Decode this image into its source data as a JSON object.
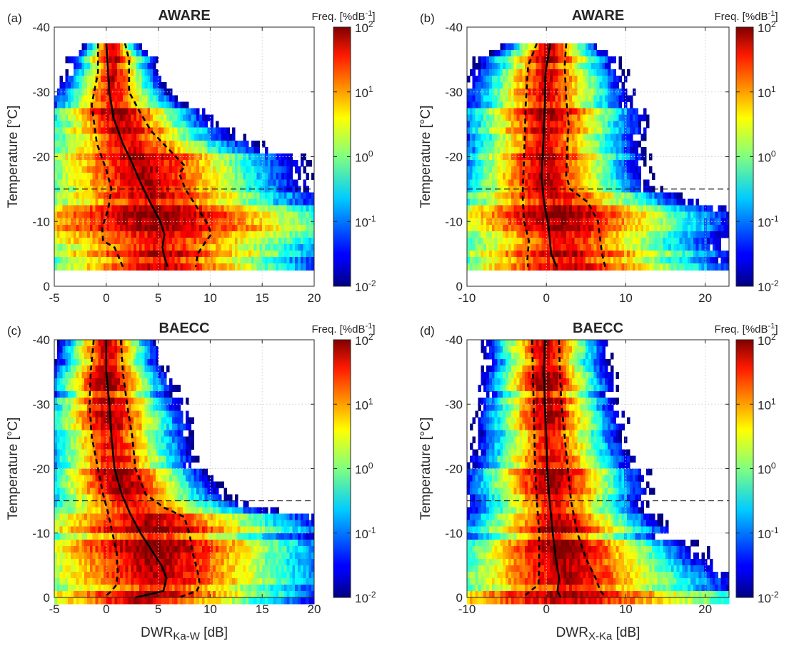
{
  "colorbar": {
    "title": "Freq. [%dB",
    "title_sup": "-1",
    "title_end": "]",
    "tick_base": "10",
    "ticks": [
      "2",
      "1",
      "0",
      "-1",
      "-2"
    ]
  },
  "y_axis_label": "Temperature  [°C]",
  "x_axis_labels": {
    "ka_w": {
      "main": "DWR",
      "sub": "Ka-W",
      "unit": " [dB]"
    },
    "x_ka": {
      "main": "DWR",
      "sub": "X-Ka",
      "unit": " [dB]"
    }
  },
  "chart_data": [
    {
      "type": "heatmap",
      "panel": "(a)",
      "title": "AWARE",
      "xlabel": "",
      "ylabel": "Temperature  [°C]",
      "xlim": [
        -5,
        20
      ],
      "ylim": [
        0,
        -40
      ],
      "xticks": [
        "-5",
        "0",
        "5",
        "10",
        "15",
        "20"
      ],
      "yticks": [
        "0",
        "-10",
        "-20",
        "-30",
        "-40"
      ],
      "color_scale": "log10, 0.01 to 100 %dB^-1",
      "reference_line_temperature": -15,
      "spread": [
        {
          "t": -37.5,
          "w": 1.0
        },
        {
          "t": -35,
          "w": 1.6
        },
        {
          "t": -30,
          "w": 2.0
        },
        {
          "t": -25,
          "w": 2.3
        },
        {
          "t": -20,
          "w": 2.5
        },
        {
          "t": -15,
          "w": 2.9
        },
        {
          "t": -10,
          "w": 3.2
        },
        {
          "t": -5,
          "w": 3.3
        },
        {
          "t": -3,
          "w": 3.4
        }
      ],
      "median": [
        {
          "t": -37.5,
          "v": 0.0
        },
        {
          "t": -35,
          "v": 0.1
        },
        {
          "t": -30,
          "v": 0.3
        },
        {
          "t": -26,
          "v": 0.7
        },
        {
          "t": -22,
          "v": 1.6
        },
        {
          "t": -19,
          "v": 2.5
        },
        {
          "t": -16,
          "v": 3.3
        },
        {
          "t": -13,
          "v": 4.2
        },
        {
          "t": -10,
          "v": 5.2
        },
        {
          "t": -8,
          "v": 5.6
        },
        {
          "t": -6,
          "v": 5.4
        },
        {
          "t": -4.5,
          "v": 5.6
        },
        {
          "t": -3,
          "v": 5.9
        }
      ],
      "lower_quartile": [
        {
          "t": -37.5,
          "v": -0.8
        },
        {
          "t": -33,
          "v": -0.8
        },
        {
          "t": -28,
          "v": -1.4
        },
        {
          "t": -22,
          "v": -0.9
        },
        {
          "t": -18,
          "v": 0.0
        },
        {
          "t": -15,
          "v": 0.5
        },
        {
          "t": -12,
          "v": 0.2
        },
        {
          "t": -9,
          "v": -0.4
        },
        {
          "t": -7,
          "v": -0.3
        },
        {
          "t": -6,
          "v": 0.8
        },
        {
          "t": -4.5,
          "v": 1.2
        },
        {
          "t": -3,
          "v": 1.6
        }
      ],
      "upper_quartile": [
        {
          "t": -37.5,
          "v": 1.8
        },
        {
          "t": -35,
          "v": 2.2
        },
        {
          "t": -30,
          "v": 2.2
        },
        {
          "t": -27,
          "v": 3.2
        },
        {
          "t": -24,
          "v": 4.3
        },
        {
          "t": -21.5,
          "v": 5.8
        },
        {
          "t": -19.5,
          "v": 7.0
        },
        {
          "t": -18.5,
          "v": 7.6
        },
        {
          "t": -17.5,
          "v": 7.0
        },
        {
          "t": -15,
          "v": 7.6
        },
        {
          "t": -12,
          "v": 8.8
        },
        {
          "t": -9.5,
          "v": 9.8
        },
        {
          "t": -8,
          "v": 10.1
        },
        {
          "t": -7,
          "v": 9.6
        },
        {
          "t": -5,
          "v": 8.8
        },
        {
          "t": -3,
          "v": 8.6
        }
      ]
    },
    {
      "type": "heatmap",
      "panel": "(b)",
      "title": "AWARE",
      "xlabel": "",
      "ylabel": "Temperature  [°C]",
      "xlim": [
        -10,
        23
      ],
      "ylim": [
        0,
        -40
      ],
      "xticks": [
        "-10",
        "0",
        "10",
        "20"
      ],
      "yticks": [
        "0",
        "-10",
        "-20",
        "-30",
        "-40"
      ],
      "color_scale": "log10, 0.01 to 100 %dB^-1",
      "reference_line_temperature": -15,
      "spread": [
        {
          "t": -37.5,
          "w": 1.8
        },
        {
          "t": -35,
          "w": 2.5
        },
        {
          "t": -30,
          "w": 2.8
        },
        {
          "t": -25,
          "w": 3.0
        },
        {
          "t": -20,
          "w": 3.0
        },
        {
          "t": -15,
          "w": 3.0
        },
        {
          "t": -10,
          "w": 3.2
        },
        {
          "t": -5,
          "w": 3.2
        },
        {
          "t": -3,
          "w": 3.2
        }
      ],
      "median": [
        {
          "t": -37.5,
          "v": 0.5
        },
        {
          "t": -33,
          "v": -0.1
        },
        {
          "t": -28,
          "v": -0.2
        },
        {
          "t": -22,
          "v": -0.4
        },
        {
          "t": -17,
          "v": -0.6
        },
        {
          "t": -13,
          "v": -0.3
        },
        {
          "t": -9,
          "v": 0.3
        },
        {
          "t": -5,
          "v": 0.6
        },
        {
          "t": -3,
          "v": 1.3
        }
      ],
      "lower_quartile": [
        {
          "t": -37.5,
          "v": -1.2
        },
        {
          "t": -34,
          "v": -2.3
        },
        {
          "t": -28,
          "v": -2.6
        },
        {
          "t": -20,
          "v": -2.8
        },
        {
          "t": -14,
          "v": -3.0
        },
        {
          "t": -10,
          "v": -2.8
        },
        {
          "t": -7,
          "v": -2.2
        },
        {
          "t": -4,
          "v": -2.4
        },
        {
          "t": -3,
          "v": -2.3
        }
      ],
      "upper_quartile": [
        {
          "t": -37.5,
          "v": 2.5
        },
        {
          "t": -34,
          "v": 2.3
        },
        {
          "t": -29,
          "v": 2.5
        },
        {
          "t": -25,
          "v": 2.8
        },
        {
          "t": -21,
          "v": 2.6
        },
        {
          "t": -17,
          "v": 2.5
        },
        {
          "t": -15,
          "v": 3.0
        },
        {
          "t": -13,
          "v": 5.2
        },
        {
          "t": -10,
          "v": 6.5
        },
        {
          "t": -7,
          "v": 6.8
        },
        {
          "t": -5,
          "v": 7.0
        },
        {
          "t": -3,
          "v": 7.4
        }
      ]
    },
    {
      "type": "heatmap",
      "panel": "(c)",
      "title": "BAECC",
      "xlabel": "DWR Ka-W [dB]",
      "ylabel": "Temperature  [°C]",
      "xlim": [
        -5,
        20
      ],
      "ylim": [
        0,
        -40
      ],
      "xticks": [
        "-5",
        "0",
        "5",
        "10",
        "15",
        "20"
      ],
      "yticks": [
        "0",
        "-10",
        "-20",
        "-30",
        "-40"
      ],
      "color_scale": "log10, 0.01 to 100 %dB^-1",
      "reference_line_temperature": -15,
      "spread": [
        {
          "t": -40,
          "w": 2.2
        },
        {
          "t": -35,
          "w": 2.2
        },
        {
          "t": -30,
          "w": 2.4
        },
        {
          "t": -25,
          "w": 2.6
        },
        {
          "t": -20,
          "w": 2.8
        },
        {
          "t": -15,
          "w": 3.0
        },
        {
          "t": -10,
          "w": 3.2
        },
        {
          "t": -5,
          "w": 3.2
        },
        {
          "t": 0,
          "w": 3.2
        }
      ],
      "median": [
        {
          "t": -40,
          "v": 0.0
        },
        {
          "t": -35,
          "v": 0.0
        },
        {
          "t": -30,
          "v": 0.3
        },
        {
          "t": -25,
          "v": 0.5
        },
        {
          "t": -20,
          "v": 0.8
        },
        {
          "t": -16,
          "v": 1.5
        },
        {
          "t": -13,
          "v": 2.3
        },
        {
          "t": -10,
          "v": 3.3
        },
        {
          "t": -7,
          "v": 4.5
        },
        {
          "t": -5,
          "v": 5.3
        },
        {
          "t": -3,
          "v": 5.8
        },
        {
          "t": -1,
          "v": 5.5
        },
        {
          "t": 0,
          "v": 2.8
        }
      ],
      "lower_quartile": [
        {
          "t": -40,
          "v": -1.2
        },
        {
          "t": -35,
          "v": -1.5
        },
        {
          "t": -30,
          "v": -1.6
        },
        {
          "t": -25,
          "v": -1.4
        },
        {
          "t": -20,
          "v": -0.8
        },
        {
          "t": -16,
          "v": -0.3
        },
        {
          "t": -13,
          "v": 0.2
        },
        {
          "t": -10,
          "v": 0.6
        },
        {
          "t": -7,
          "v": 1.0
        },
        {
          "t": -4,
          "v": 1.1
        },
        {
          "t": -2,
          "v": 1.0
        },
        {
          "t": -1,
          "v": 0.5
        },
        {
          "t": 0,
          "v": -0.2
        }
      ],
      "upper_quartile": [
        {
          "t": -40,
          "v": 1.4
        },
        {
          "t": -35,
          "v": 1.6
        },
        {
          "t": -30,
          "v": 2.0
        },
        {
          "t": -25,
          "v": 2.5
        },
        {
          "t": -20,
          "v": 2.8
        },
        {
          "t": -16,
          "v": 3.8
        },
        {
          "t": -14,
          "v": 5.5
        },
        {
          "t": -12.5,
          "v": 7.5
        },
        {
          "t": -10,
          "v": 8.0
        },
        {
          "t": -7,
          "v": 8.3
        },
        {
          "t": -4,
          "v": 8.8
        },
        {
          "t": -2,
          "v": 9.0
        },
        {
          "t": -1,
          "v": 8.7
        },
        {
          "t": 0,
          "v": 7.0
        }
      ]
    },
    {
      "type": "heatmap",
      "panel": "(d)",
      "title": "BAECC",
      "xlabel": "DWR X-Ka [dB]",
      "ylabel": "Temperature  [°C]",
      "xlim": [
        -10,
        23
      ],
      "ylim": [
        0,
        -40
      ],
      "xticks": [
        "-10",
        "0",
        "10",
        "20"
      ],
      "yticks": [
        "0",
        "-10",
        "-20",
        "-30",
        "-40"
      ],
      "color_scale": "log10, 0.01 to 100 %dB^-1",
      "reference_line_temperature": -15,
      "spread": [
        {
          "t": -40,
          "w": 3.0
        },
        {
          "t": -35,
          "w": 3.0
        },
        {
          "t": -30,
          "w": 3.2
        },
        {
          "t": -25,
          "w": 3.4
        },
        {
          "t": -20,
          "w": 3.6
        },
        {
          "t": -15,
          "w": 3.8
        },
        {
          "t": -10,
          "w": 4.0
        },
        {
          "t": -5,
          "w": 4.2
        },
        {
          "t": 0,
          "w": 4.2
        }
      ],
      "median": [
        {
          "t": -40,
          "v": -0.2
        },
        {
          "t": -35,
          "v": -0.3
        },
        {
          "t": -30,
          "v": -0.2
        },
        {
          "t": -25,
          "v": 0.0
        },
        {
          "t": -20,
          "v": 0.1
        },
        {
          "t": -15,
          "v": 0.4
        },
        {
          "t": -10,
          "v": 0.8
        },
        {
          "t": -6,
          "v": 1.2
        },
        {
          "t": -3,
          "v": 1.6
        },
        {
          "t": -1,
          "v": 1.4
        },
        {
          "t": 0,
          "v": 1.8
        }
      ],
      "lower_quartile": [
        {
          "t": -40,
          "v": -1.8
        },
        {
          "t": -35,
          "v": -1.7
        },
        {
          "t": -30,
          "v": -1.6
        },
        {
          "t": -25,
          "v": -1.5
        },
        {
          "t": -20,
          "v": -1.4
        },
        {
          "t": -15,
          "v": -1.2
        },
        {
          "t": -10,
          "v": -0.9
        },
        {
          "t": -5,
          "v": -0.9
        },
        {
          "t": -2,
          "v": -1.0
        },
        {
          "t": 0,
          "v": -3.0
        }
      ],
      "upper_quartile": [
        {
          "t": -40,
          "v": 1.6
        },
        {
          "t": -35,
          "v": 1.7
        },
        {
          "t": -30,
          "v": 1.9
        },
        {
          "t": -25,
          "v": 2.3
        },
        {
          "t": -20,
          "v": 2.7
        },
        {
          "t": -15,
          "v": 3.1
        },
        {
          "t": -10,
          "v": 3.9
        },
        {
          "t": -6,
          "v": 5.0
        },
        {
          "t": -3,
          "v": 6.2
        },
        {
          "t": -1,
          "v": 6.8
        },
        {
          "t": 0,
          "v": 7.5
        }
      ]
    }
  ]
}
